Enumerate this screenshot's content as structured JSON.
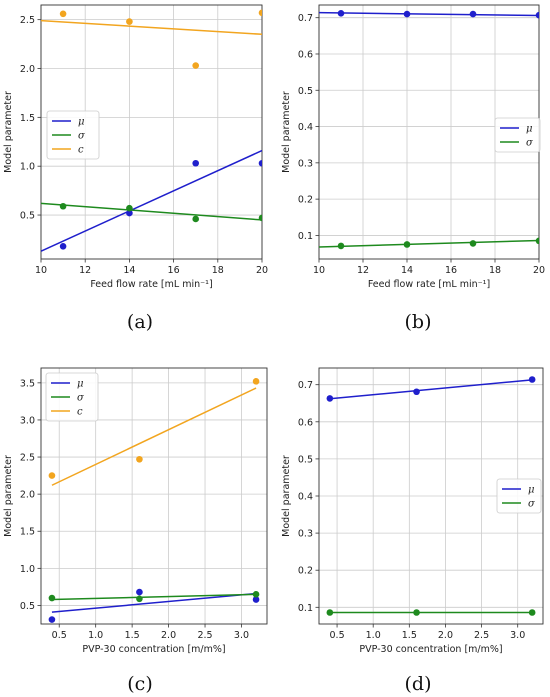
{
  "colors": {
    "mu": "#1f1fcc",
    "sigma": "#1e8a1e",
    "c": "#f2a51f",
    "grid": "#cccccc",
    "axis": "#333333"
  },
  "chart_data": [
    {
      "panel": "(a)",
      "type": "scatter",
      "xlabel": "Feed flow rate [mL min⁻¹]",
      "ylabel": "Model parameter",
      "xlim": [
        10,
        20
      ],
      "ylim": [
        0.05,
        2.65
      ],
      "xticks": [
        "10",
        "12",
        "14",
        "16",
        "18",
        "20"
      ],
      "xtick_values": [
        10,
        12,
        14,
        16,
        18,
        20
      ],
      "yticks": [
        "0.5",
        "1.0",
        "1.5",
        "2.0",
        "2.5"
      ],
      "ytick_values": [
        0.5,
        1.0,
        1.5,
        2.0,
        2.5
      ],
      "legend_position": "middle-left",
      "series": [
        {
          "name": "μ",
          "key": "mu",
          "x": [
            11,
            14,
            17,
            20
          ],
          "y": [
            0.18,
            0.52,
            1.03,
            1.03
          ],
          "fit": [
            [
              10,
              0.13
            ],
            [
              20,
              1.16
            ]
          ]
        },
        {
          "name": "σ",
          "key": "sigma",
          "x": [
            11,
            14,
            17,
            20
          ],
          "y": [
            0.59,
            0.57,
            0.46,
            0.47
          ],
          "fit": [
            [
              10,
              0.62
            ],
            [
              20,
              0.45
            ]
          ]
        },
        {
          "name": "c",
          "key": "c",
          "x": [
            11,
            14,
            17,
            20
          ],
          "y": [
            2.56,
            2.48,
            2.03,
            2.57
          ],
          "fit": [
            [
              10,
              2.49
            ],
            [
              20,
              2.35
            ]
          ]
        }
      ]
    },
    {
      "panel": "(b)",
      "type": "scatter",
      "xlabel": "Feed flow rate [mL min⁻¹]",
      "ylabel": "Model parameter",
      "xlim": [
        10,
        20
      ],
      "ylim": [
        0.035,
        0.735
      ],
      "xticks": [
        "10",
        "12",
        "14",
        "16",
        "18",
        "20"
      ],
      "xtick_values": [
        10,
        12,
        14,
        16,
        18,
        20
      ],
      "yticks": [
        "0.1",
        "0.2",
        "0.3",
        "0.4",
        "0.5",
        "0.6",
        "0.7"
      ],
      "ytick_values": [
        0.1,
        0.2,
        0.3,
        0.4,
        0.5,
        0.6,
        0.7
      ],
      "legend_position": "middle-right",
      "series": [
        {
          "name": "μ",
          "key": "mu",
          "x": [
            11,
            14,
            17,
            20
          ],
          "y": [
            0.712,
            0.71,
            0.71,
            0.707
          ],
          "fit": [
            [
              10,
              0.714
            ],
            [
              20,
              0.706
            ]
          ]
        },
        {
          "name": "σ",
          "key": "sigma",
          "x": [
            11,
            14,
            17,
            20
          ],
          "y": [
            0.071,
            0.075,
            0.078,
            0.085
          ],
          "fit": [
            [
              10,
              0.068
            ],
            [
              20,
              0.086
            ]
          ]
        }
      ]
    },
    {
      "panel": "(c)",
      "type": "scatter",
      "xlabel": "PVP-30 concentration [m/m%]",
      "ylabel": "Model parameter",
      "xlim": [
        0.25,
        3.35
      ],
      "ylim": [
        0.25,
        3.7
      ],
      "xticks": [
        "0.5",
        "1.0",
        "1.5",
        "2.0",
        "2.5",
        "3.0"
      ],
      "xtick_values": [
        0.5,
        1.0,
        1.5,
        2.0,
        2.5,
        3.0
      ],
      "yticks": [
        "0.5",
        "1.0",
        "1.5",
        "2.0",
        "2.5",
        "3.0",
        "3.5"
      ],
      "ytick_values": [
        0.5,
        1.0,
        1.5,
        2.0,
        2.5,
        3.0,
        3.5
      ],
      "legend_position": "top-left",
      "series": [
        {
          "name": "μ",
          "key": "mu",
          "x": [
            0.4,
            1.6,
            3.2
          ],
          "y": [
            0.31,
            0.68,
            0.58
          ],
          "fit": [
            [
              0.4,
              0.41
            ],
            [
              3.2,
              0.66
            ]
          ]
        },
        {
          "name": "σ",
          "key": "sigma",
          "x": [
            0.4,
            1.6,
            3.2
          ],
          "y": [
            0.6,
            0.59,
            0.65
          ],
          "fit": [
            [
              0.4,
              0.58
            ],
            [
              3.2,
              0.65
            ]
          ]
        },
        {
          "name": "c",
          "key": "c",
          "x": [
            0.4,
            1.6,
            3.2
          ],
          "y": [
            2.25,
            2.47,
            3.52
          ],
          "fit": [
            [
              0.4,
              2.12
            ],
            [
              3.2,
              3.43
            ]
          ]
        }
      ]
    },
    {
      "panel": "(d)",
      "type": "scatter",
      "xlabel": "PVP-30 concentration [m/m%]",
      "ylabel": "Model parameter",
      "xlim": [
        0.25,
        3.35
      ],
      "ylim": [
        0.055,
        0.745
      ],
      "xticks": [
        "0.5",
        "1.0",
        "1.5",
        "2.0",
        "2.5",
        "3.0"
      ],
      "xtick_values": [
        0.5,
        1.0,
        1.5,
        2.0,
        2.5,
        3.0
      ],
      "yticks": [
        "0.1",
        "0.2",
        "0.3",
        "0.4",
        "0.5",
        "0.6",
        "0.7"
      ],
      "ytick_values": [
        0.1,
        0.2,
        0.3,
        0.4,
        0.5,
        0.6,
        0.7
      ],
      "legend_position": "middle-right",
      "series": [
        {
          "name": "μ",
          "key": "mu",
          "x": [
            0.4,
            1.6,
            3.2
          ],
          "y": [
            0.663,
            0.681,
            0.714
          ],
          "fit": [
            [
              0.4,
              0.662
            ],
            [
              3.2,
              0.713
            ]
          ]
        },
        {
          "name": "σ",
          "key": "sigma",
          "x": [
            0.4,
            1.6,
            3.2
          ],
          "y": [
            0.086,
            0.086,
            0.086
          ],
          "fit": [
            [
              0.4,
              0.086
            ],
            [
              3.2,
              0.086
            ]
          ]
        }
      ]
    }
  ]
}
